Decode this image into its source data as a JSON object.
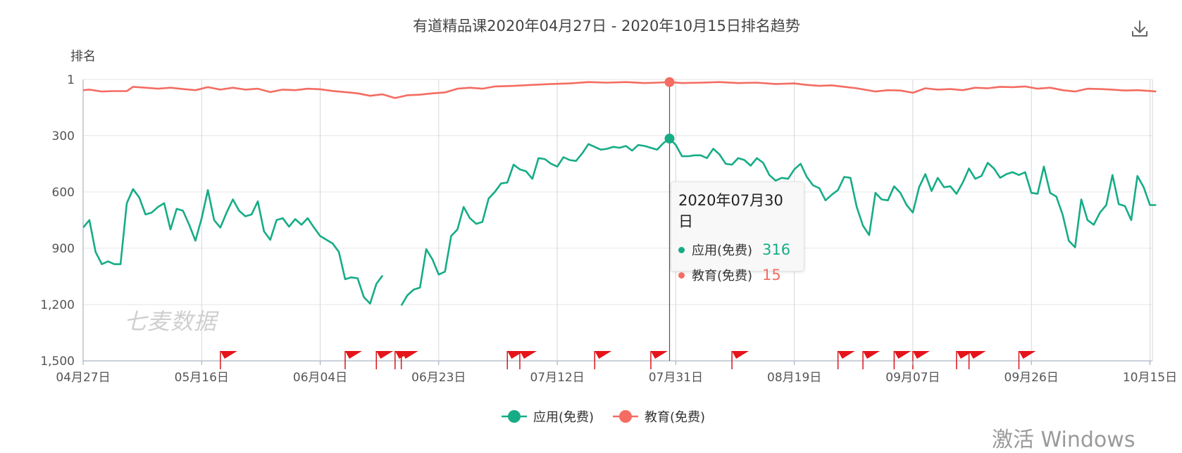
{
  "chart_data": {
    "type": "line",
    "title": "有道精品课2020年04月27日 - 2020年10月15日排名趋势",
    "ylabel": "排名",
    "y_reversed": true,
    "ylim": [
      1,
      1500
    ],
    "yticks": [
      "1",
      "300",
      "600",
      "900",
      "1,200",
      "1,500"
    ],
    "ytick_values": [
      1,
      300,
      600,
      900,
      1200,
      1500
    ],
    "xlim": [
      "2020-04-27",
      "2020-10-15"
    ],
    "xticks": [
      "04月27日",
      "05月16日",
      "06月04日",
      "06月23日",
      "07月12日",
      "07月31日",
      "08月19日",
      "09月07日",
      "09月26日",
      "10月15日"
    ],
    "xtick_dates": [
      "2020-04-27",
      "2020-05-16",
      "2020-06-04",
      "2020-06-23",
      "2020-07-12",
      "2020-07-31",
      "2020-08-19",
      "2020-09-07",
      "2020-09-26",
      "2020-10-15"
    ],
    "grid": true,
    "legend_position": "bottom-center",
    "series": [
      {
        "name": "应用(免费)",
        "color": "#16ac86",
        "points": [
          [
            "2020-04-27",
            790
          ],
          [
            "2020-04-28",
            750
          ],
          [
            "2020-04-29",
            920
          ],
          [
            "2020-04-30",
            985
          ],
          [
            "2020-05-01",
            970
          ],
          [
            "2020-05-02",
            985
          ],
          [
            "2020-05-03",
            985
          ],
          [
            "2020-05-04",
            660
          ],
          [
            "2020-05-05",
            585
          ],
          [
            "2020-05-06",
            630
          ],
          [
            "2020-05-07",
            720
          ],
          [
            "2020-05-08",
            710
          ],
          [
            "2020-05-09",
            680
          ],
          [
            "2020-05-10",
            660
          ],
          [
            "2020-05-11",
            800
          ],
          [
            "2020-05-12",
            690
          ],
          [
            "2020-05-13",
            700
          ],
          [
            "2020-05-14",
            775
          ],
          [
            "2020-05-15",
            860
          ],
          [
            "2020-05-16",
            740
          ],
          [
            "2020-05-17",
            590
          ],
          [
            "2020-05-18",
            750
          ],
          [
            "2020-05-19",
            790
          ],
          [
            "2020-05-20",
            710
          ],
          [
            "2020-05-21",
            640
          ],
          [
            "2020-05-22",
            700
          ],
          [
            "2020-05-23",
            730
          ],
          [
            "2020-05-24",
            720
          ],
          [
            "2020-05-25",
            650
          ],
          [
            "2020-05-26",
            810
          ],
          [
            "2020-05-27",
            855
          ],
          [
            "2020-05-28",
            750
          ],
          [
            "2020-05-29",
            740
          ],
          [
            "2020-05-30",
            785
          ],
          [
            "2020-05-31",
            745
          ],
          [
            "2020-06-01",
            775
          ],
          [
            "2020-06-02",
            740
          ],
          [
            "2020-06-03",
            790
          ],
          [
            "2020-06-04",
            835
          ],
          [
            "2020-06-05",
            855
          ],
          [
            "2020-06-06",
            875
          ],
          [
            "2020-06-07",
            920
          ],
          [
            "2020-06-08",
            1065
          ],
          [
            "2020-06-09",
            1055
          ],
          [
            "2020-06-10",
            1060
          ],
          [
            "2020-06-11",
            1160
          ],
          [
            "2020-06-12",
            1195
          ],
          [
            "2020-06-13",
            1090
          ],
          [
            "2020-06-14",
            1045
          ],
          [
            "2020-06-15",
            null
          ],
          [
            "2020-06-16",
            null
          ],
          [
            "2020-06-17",
            1205
          ],
          [
            "2020-06-18",
            1150
          ],
          [
            "2020-06-19",
            1120
          ],
          [
            "2020-06-20",
            1110
          ],
          [
            "2020-06-21",
            905
          ],
          [
            "2020-06-22",
            960
          ],
          [
            "2020-06-23",
            1040
          ],
          [
            "2020-06-24",
            1025
          ],
          [
            "2020-06-25",
            835
          ],
          [
            "2020-06-26",
            800
          ],
          [
            "2020-06-27",
            680
          ],
          [
            "2020-06-28",
            740
          ],
          [
            "2020-06-29",
            770
          ],
          [
            "2020-06-30",
            760
          ],
          [
            "2020-07-01",
            635
          ],
          [
            "2020-07-02",
            600
          ],
          [
            "2020-07-03",
            555
          ],
          [
            "2020-07-04",
            550
          ],
          [
            "2020-07-05",
            455
          ],
          [
            "2020-07-06",
            480
          ],
          [
            "2020-07-07",
            490
          ],
          [
            "2020-07-08",
            530
          ],
          [
            "2020-07-09",
            420
          ],
          [
            "2020-07-10",
            425
          ],
          [
            "2020-07-11",
            450
          ],
          [
            "2020-07-12",
            465
          ],
          [
            "2020-07-13",
            415
          ],
          [
            "2020-07-14",
            430
          ],
          [
            "2020-07-15",
            435
          ],
          [
            "2020-07-16",
            395
          ],
          [
            "2020-07-17",
            345
          ],
          [
            "2020-07-18",
            360
          ],
          [
            "2020-07-19",
            375
          ],
          [
            "2020-07-20",
            370
          ],
          [
            "2020-07-21",
            360
          ],
          [
            "2020-07-22",
            365
          ],
          [
            "2020-07-23",
            355
          ],
          [
            "2020-07-24",
            380
          ],
          [
            "2020-07-25",
            350
          ],
          [
            "2020-07-26",
            355
          ],
          [
            "2020-07-27",
            365
          ],
          [
            "2020-07-28",
            375
          ],
          [
            "2020-07-29",
            340
          ],
          [
            "2020-07-30",
            316
          ],
          [
            "2020-07-31",
            350
          ],
          [
            "2020-08-01",
            410
          ],
          [
            "2020-08-02",
            410
          ],
          [
            "2020-08-03",
            405
          ],
          [
            "2020-08-04",
            405
          ],
          [
            "2020-08-05",
            420
          ],
          [
            "2020-08-06",
            370
          ],
          [
            "2020-08-07",
            400
          ],
          [
            "2020-08-08",
            450
          ],
          [
            "2020-08-09",
            455
          ],
          [
            "2020-08-10",
            420
          ],
          [
            "2020-08-11",
            430
          ],
          [
            "2020-08-12",
            460
          ],
          [
            "2020-08-13",
            420
          ],
          [
            "2020-08-14",
            445
          ],
          [
            "2020-08-15",
            510
          ],
          [
            "2020-08-16",
            540
          ],
          [
            "2020-08-17",
            525
          ],
          [
            "2020-08-18",
            530
          ],
          [
            "2020-08-19",
            480
          ],
          [
            "2020-08-20",
            450
          ],
          [
            "2020-08-21",
            520
          ],
          [
            "2020-08-22",
            565
          ],
          [
            "2020-08-23",
            580
          ],
          [
            "2020-08-24",
            645
          ],
          [
            "2020-08-25",
            615
          ],
          [
            "2020-08-26",
            590
          ],
          [
            "2020-08-27",
            520
          ],
          [
            "2020-08-28",
            525
          ],
          [
            "2020-08-29",
            680
          ],
          [
            "2020-08-30",
            780
          ],
          [
            "2020-08-31",
            830
          ],
          [
            "2020-09-01",
            605
          ],
          [
            "2020-09-02",
            640
          ],
          [
            "2020-09-03",
            645
          ],
          [
            "2020-09-04",
            570
          ],
          [
            "2020-09-05",
            605
          ],
          [
            "2020-09-06",
            670
          ],
          [
            "2020-09-07",
            710
          ],
          [
            "2020-09-08",
            575
          ],
          [
            "2020-09-09",
            505
          ],
          [
            "2020-09-10",
            595
          ],
          [
            "2020-09-11",
            525
          ],
          [
            "2020-09-12",
            575
          ],
          [
            "2020-09-13",
            570
          ],
          [
            "2020-09-14",
            610
          ],
          [
            "2020-09-15",
            550
          ],
          [
            "2020-09-16",
            475
          ],
          [
            "2020-09-17",
            530
          ],
          [
            "2020-09-18",
            515
          ],
          [
            "2020-09-19",
            445
          ],
          [
            "2020-09-20",
            475
          ],
          [
            "2020-09-21",
            525
          ],
          [
            "2020-09-22",
            505
          ],
          [
            "2020-09-23",
            495
          ],
          [
            "2020-09-24",
            510
          ],
          [
            "2020-09-25",
            495
          ],
          [
            "2020-09-26",
            605
          ],
          [
            "2020-09-27",
            610
          ],
          [
            "2020-09-28",
            465
          ],
          [
            "2020-09-29",
            605
          ],
          [
            "2020-09-30",
            625
          ],
          [
            "2020-10-01",
            720
          ],
          [
            "2020-10-02",
            860
          ],
          [
            "2020-10-03",
            895
          ],
          [
            "2020-10-04",
            640
          ],
          [
            "2020-10-05",
            750
          ],
          [
            "2020-10-06",
            775
          ],
          [
            "2020-10-07",
            710
          ],
          [
            "2020-10-08",
            670
          ],
          [
            "2020-10-09",
            510
          ],
          [
            "2020-10-10",
            665
          ],
          [
            "2020-10-11",
            675
          ],
          [
            "2020-10-12",
            750
          ],
          [
            "2020-10-13",
            515
          ],
          [
            "2020-10-14",
            575
          ],
          [
            "2020-10-15",
            670
          ],
          [
            "2020-10-16",
            670
          ]
        ]
      },
      {
        "name": "教育(免费)",
        "color": "#f46c62",
        "points": [
          [
            "2020-04-27",
            58
          ],
          [
            "2020-04-28",
            55
          ],
          [
            "2020-04-30",
            65
          ],
          [
            "2020-05-02",
            63
          ],
          [
            "2020-05-04",
            63
          ],
          [
            "2020-05-05",
            40
          ],
          [
            "2020-05-07",
            45
          ],
          [
            "2020-05-09",
            50
          ],
          [
            "2020-05-11",
            45
          ],
          [
            "2020-05-13",
            52
          ],
          [
            "2020-05-15",
            58
          ],
          [
            "2020-05-17",
            42
          ],
          [
            "2020-05-19",
            55
          ],
          [
            "2020-05-21",
            45
          ],
          [
            "2020-05-23",
            55
          ],
          [
            "2020-05-25",
            50
          ],
          [
            "2020-05-27",
            68
          ],
          [
            "2020-05-29",
            55
          ],
          [
            "2020-05-31",
            58
          ],
          [
            "2020-06-02",
            50
          ],
          [
            "2020-06-04",
            53
          ],
          [
            "2020-06-06",
            62
          ],
          [
            "2020-06-08",
            68
          ],
          [
            "2020-06-10",
            75
          ],
          [
            "2020-06-12",
            88
          ],
          [
            "2020-06-14",
            80
          ],
          [
            "2020-06-16",
            100
          ],
          [
            "2020-06-18",
            85
          ],
          [
            "2020-06-20",
            82
          ],
          [
            "2020-06-22",
            75
          ],
          [
            "2020-06-24",
            70
          ],
          [
            "2020-06-26",
            50
          ],
          [
            "2020-06-28",
            45
          ],
          [
            "2020-06-30",
            50
          ],
          [
            "2020-07-02",
            38
          ],
          [
            "2020-07-05",
            35
          ],
          [
            "2020-07-08",
            30
          ],
          [
            "2020-07-11",
            25
          ],
          [
            "2020-07-14",
            22
          ],
          [
            "2020-07-17",
            15
          ],
          [
            "2020-07-20",
            18
          ],
          [
            "2020-07-23",
            15
          ],
          [
            "2020-07-26",
            20
          ],
          [
            "2020-07-28",
            18
          ],
          [
            "2020-07-30",
            15
          ],
          [
            "2020-08-01",
            20
          ],
          [
            "2020-08-04",
            18
          ],
          [
            "2020-08-07",
            15
          ],
          [
            "2020-08-10",
            20
          ],
          [
            "2020-08-13",
            18
          ],
          [
            "2020-08-16",
            25
          ],
          [
            "2020-08-19",
            22
          ],
          [
            "2020-08-21",
            30
          ],
          [
            "2020-08-23",
            35
          ],
          [
            "2020-08-25",
            32
          ],
          [
            "2020-08-27",
            40
          ],
          [
            "2020-08-29",
            48
          ],
          [
            "2020-09-01",
            65
          ],
          [
            "2020-09-03",
            58
          ],
          [
            "2020-09-05",
            60
          ],
          [
            "2020-09-07",
            72
          ],
          [
            "2020-09-09",
            48
          ],
          [
            "2020-09-11",
            55
          ],
          [
            "2020-09-13",
            52
          ],
          [
            "2020-09-15",
            58
          ],
          [
            "2020-09-17",
            45
          ],
          [
            "2020-09-19",
            48
          ],
          [
            "2020-09-21",
            40
          ],
          [
            "2020-09-23",
            42
          ],
          [
            "2020-09-25",
            38
          ],
          [
            "2020-09-27",
            50
          ],
          [
            "2020-09-29",
            45
          ],
          [
            "2020-10-01",
            58
          ],
          [
            "2020-10-03",
            65
          ],
          [
            "2020-10-05",
            50
          ],
          [
            "2020-10-07",
            52
          ],
          [
            "2020-10-09",
            55
          ],
          [
            "2020-10-11",
            60
          ],
          [
            "2020-10-13",
            58
          ],
          [
            "2020-10-15",
            62
          ],
          [
            "2020-10-16",
            65
          ]
        ]
      }
    ],
    "event_flags": [
      "2020-05-19",
      "2020-06-08",
      "2020-06-13",
      "2020-06-16",
      "2020-06-17",
      "2020-07-04",
      "2020-07-06",
      "2020-07-18",
      "2020-07-27",
      "2020-08-09",
      "2020-08-26",
      "2020-08-30",
      "2020-09-04",
      "2020-09-07",
      "2020-09-14",
      "2020-09-16",
      "2020-09-24"
    ],
    "tooltip": {
      "date": "2020年07月30日",
      "rows": [
        {
          "name": "应用(免费)",
          "value": "316",
          "color": "#16ac86"
        },
        {
          "name": "教育(免费)",
          "value": "15",
          "color": "#f46c62"
        }
      ],
      "highlight_date": "2020-07-30"
    },
    "watermark": "七麦数据"
  },
  "overlay": {
    "activate_text": "激活 Windows"
  },
  "icons": {
    "download": "download-icon"
  }
}
